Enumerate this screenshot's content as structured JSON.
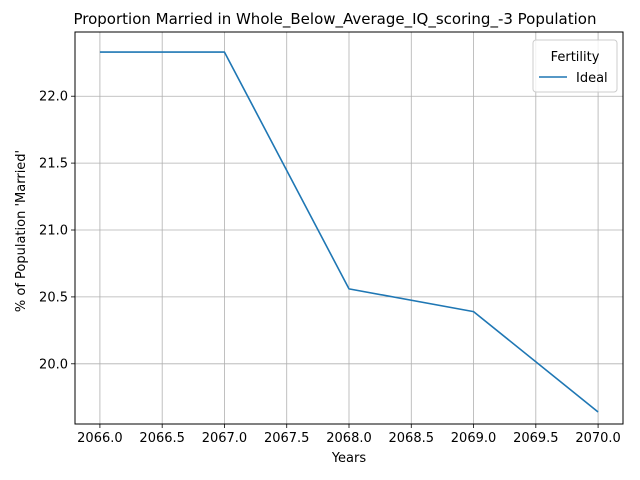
{
  "chart_data": {
    "type": "line",
    "title": "Proportion Married in Whole_Below_Average_IQ_scoring_-3 Population",
    "xlabel": "Years",
    "ylabel": "% of Population 'Married'",
    "xlim": [
      2065.8,
      2070.2
    ],
    "ylim": [
      19.55,
      22.48
    ],
    "xticks": [
      2066.0,
      2066.5,
      2067.0,
      2067.5,
      2068.0,
      2068.5,
      2069.0,
      2069.5,
      2070.0
    ],
    "xtick_labels": [
      "2066.0",
      "2066.5",
      "2067.0",
      "2067.5",
      "2068.0",
      "2068.5",
      "2069.0",
      "2069.5",
      "2070.0"
    ],
    "yticks": [
      20.0,
      20.5,
      21.0,
      21.5,
      22.0
    ],
    "ytick_labels": [
      "20.0",
      "20.5",
      "21.0",
      "21.5",
      "22.0"
    ],
    "grid": true,
    "legend": {
      "title": "Fertility",
      "placement": "top-right"
    },
    "series": [
      {
        "name": "Ideal",
        "color": "#1f77b4",
        "x": [
          2066,
          2067,
          2068,
          2069,
          2070
        ],
        "y": [
          22.33,
          22.33,
          20.56,
          20.39,
          19.64
        ]
      }
    ]
  }
}
